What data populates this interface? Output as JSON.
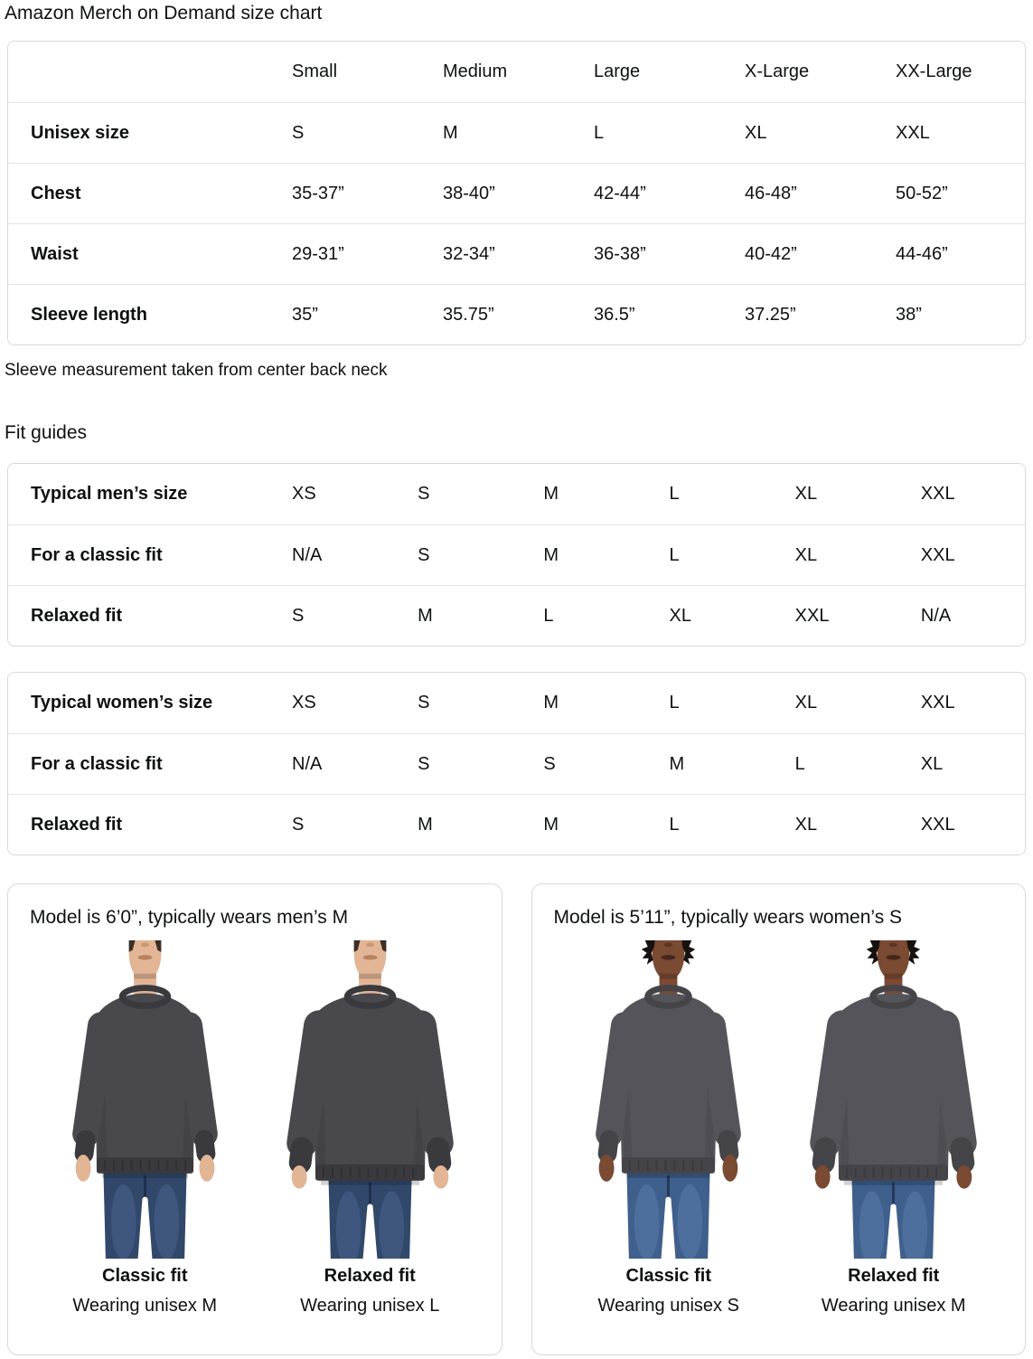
{
  "page": {
    "title": "Amazon Merch on Demand size chart",
    "note": "Sleeve measurement taken from center back neck",
    "fit_guides_heading": "Fit guides"
  },
  "size_table": {
    "columns": [
      "",
      "Small",
      "Medium",
      "Large",
      "X-Large",
      "XX-Large"
    ],
    "rows": [
      {
        "label": "Unisex size",
        "values": [
          "S",
          "M",
          "L",
          "XL",
          "XXL"
        ]
      },
      {
        "label": "Chest",
        "values": [
          "35-37”",
          "38-40”",
          "42-44”",
          "46-48”",
          "50-52”"
        ]
      },
      {
        "label": "Waist",
        "values": [
          "29-31”",
          "32-34”",
          "36-38”",
          "40-42”",
          "44-46”"
        ]
      },
      {
        "label": "Sleeve length",
        "values": [
          "35”",
          "35.75”",
          "36.5”",
          "37.25”",
          "38”"
        ]
      }
    ]
  },
  "mens_fit_table": {
    "rows": [
      {
        "label": "Typical men’s size",
        "values": [
          "XS",
          "S",
          "M",
          "L",
          "XL",
          "XXL"
        ]
      },
      {
        "label": "For a classic fit",
        "values": [
          "N/A",
          "S",
          "M",
          "L",
          "XL",
          "XXL"
        ]
      },
      {
        "label": "Relaxed fit",
        "values": [
          "S",
          "M",
          "L",
          "XL",
          "XXL",
          "N/A"
        ]
      }
    ]
  },
  "womens_fit_table": {
    "rows": [
      {
        "label": "Typical women’s size",
        "values": [
          "XS",
          "S",
          "M",
          "L",
          "XL",
          "XXL"
        ]
      },
      {
        "label": "For a classic fit",
        "values": [
          "N/A",
          "S",
          "S",
          "M",
          "L",
          "XL"
        ]
      },
      {
        "label": "Relaxed fit",
        "values": [
          "S",
          "M",
          "M",
          "L",
          "XL",
          "XXL"
        ]
      }
    ]
  },
  "model_cards": [
    {
      "title": "Model is 6’0”, typically wears men’s M",
      "figures": [
        {
          "fit_label": "Classic fit",
          "wearing": "Wearing unisex M",
          "model": "male-classic"
        },
        {
          "fit_label": "Relaxed fit",
          "wearing": "Wearing unisex L",
          "model": "male-relaxed"
        }
      ]
    },
    {
      "title": "Model is 5’11”, typically wears women’s S",
      "figures": [
        {
          "fit_label": "Classic fit",
          "wearing": "Wearing unisex S",
          "model": "female-classic"
        },
        {
          "fit_label": "Relaxed fit",
          "wearing": "Wearing unisex M",
          "model": "female-relaxed"
        }
      ]
    }
  ],
  "colors": {
    "text": "#0F1111",
    "table_border": "#D5D9D9",
    "row_divider": "#E3E6E6"
  },
  "models": {
    "male-classic": {
      "skin": "#E2B595",
      "lips": "#B9815F",
      "hair": "#3A2E26",
      "sweatshirt": "#49484C",
      "trim": "#3A393D",
      "jeans": "#31486B",
      "jeans_wash": "#4A6590",
      "female": false,
      "relaxed": false
    },
    "male-relaxed": {
      "skin": "#E2B595",
      "lips": "#B9815F",
      "hair": "#3A2E26",
      "sweatshirt": "#49484C",
      "trim": "#3A393D",
      "jeans": "#31486B",
      "jeans_wash": "#4A6590",
      "female": false,
      "relaxed": true
    },
    "female-classic": {
      "skin": "#7A4A33",
      "lips": "#44261A",
      "hair": "#16120F",
      "sweatshirt": "#55545A",
      "trim": "#454449",
      "jeans": "#3F5F8C",
      "jeans_wash": "#5B7CAB",
      "female": true,
      "relaxed": false
    },
    "female-relaxed": {
      "skin": "#7A4A33",
      "lips": "#44261A",
      "hair": "#16120F",
      "sweatshirt": "#55545A",
      "trim": "#454449",
      "jeans": "#3F5F8C",
      "jeans_wash": "#5B7CAB",
      "female": true,
      "relaxed": true
    }
  }
}
